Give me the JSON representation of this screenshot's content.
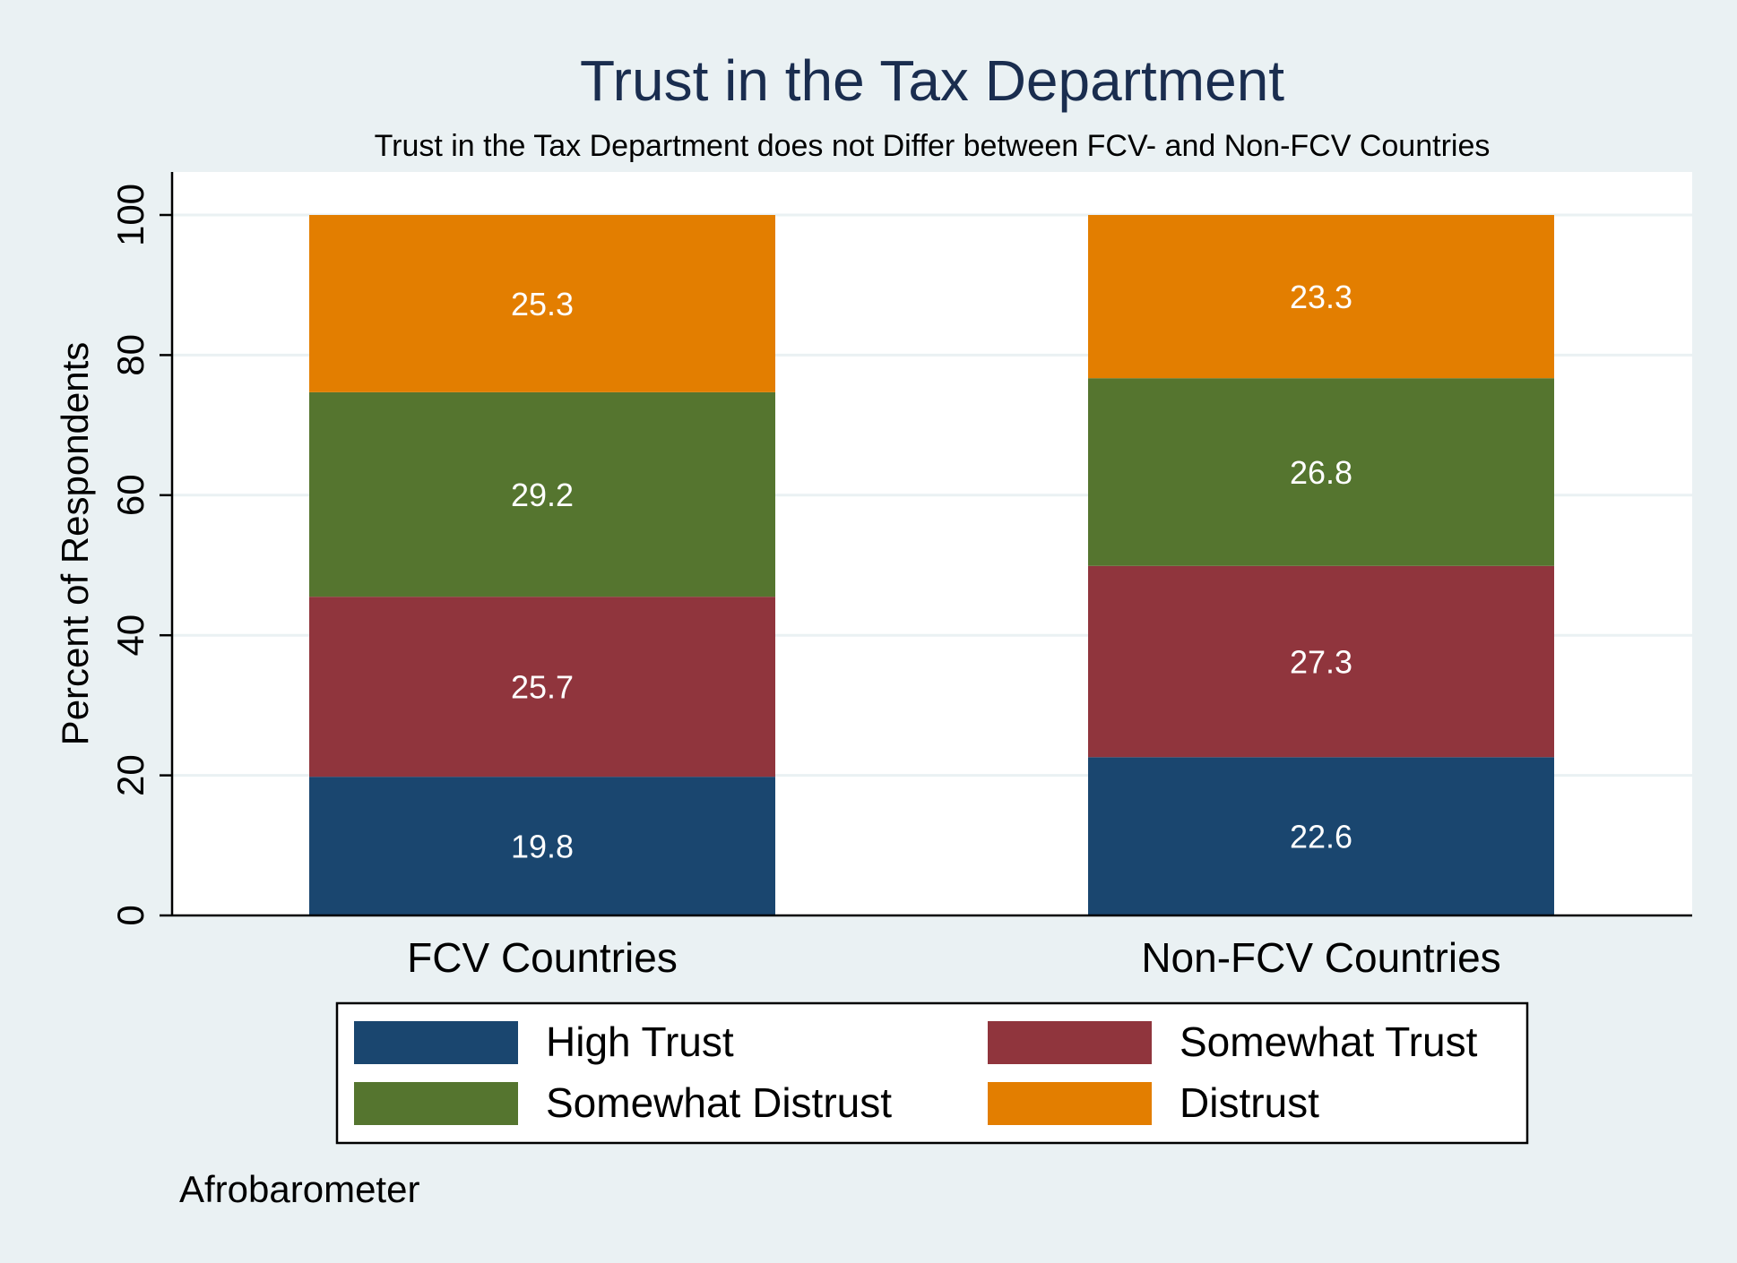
{
  "chart_data": {
    "type": "bar",
    "stacked": true,
    "title": "Trust in the Tax Department",
    "subtitle": "Trust in the Tax Department does not Differ between FCV- and Non-FCV Countries",
    "ylabel": "Percent of Respondents",
    "xlabel": "",
    "ylim": [
      0,
      100
    ],
    "yticks": [
      "0",
      "20",
      "40",
      "60",
      "80",
      "100"
    ],
    "grid": true,
    "categories": [
      "FCV Countries",
      "Non-FCV Countries"
    ],
    "series": [
      {
        "name": "High Trust",
        "color": "#1a466f",
        "values": [
          19.8,
          22.6
        ],
        "labels": [
          "19.8",
          "22.6"
        ]
      },
      {
        "name": "Somewhat Trust",
        "color": "#90353d",
        "values": [
          25.7,
          27.3
        ],
        "labels": [
          "25.7",
          "27.3"
        ]
      },
      {
        "name": "Somewhat Distrust",
        "color": "#55752f",
        "values": [
          29.2,
          26.8
        ],
        "labels": [
          "29.2",
          "26.8"
        ]
      },
      {
        "name": "Distrust",
        "color": "#e37e00",
        "values": [
          25.3,
          23.3
        ],
        "labels": [
          "25.3",
          "23.3"
        ]
      }
    ],
    "legend_position": "bottom",
    "note": "Afrobarometer"
  },
  "colors": {
    "background": "#eaf1f3",
    "plot_background": "#ffffff",
    "gridline": "#eaf1f3",
    "title": "#1a2d4f",
    "text": "#000000",
    "value_label": "#ffffff"
  }
}
